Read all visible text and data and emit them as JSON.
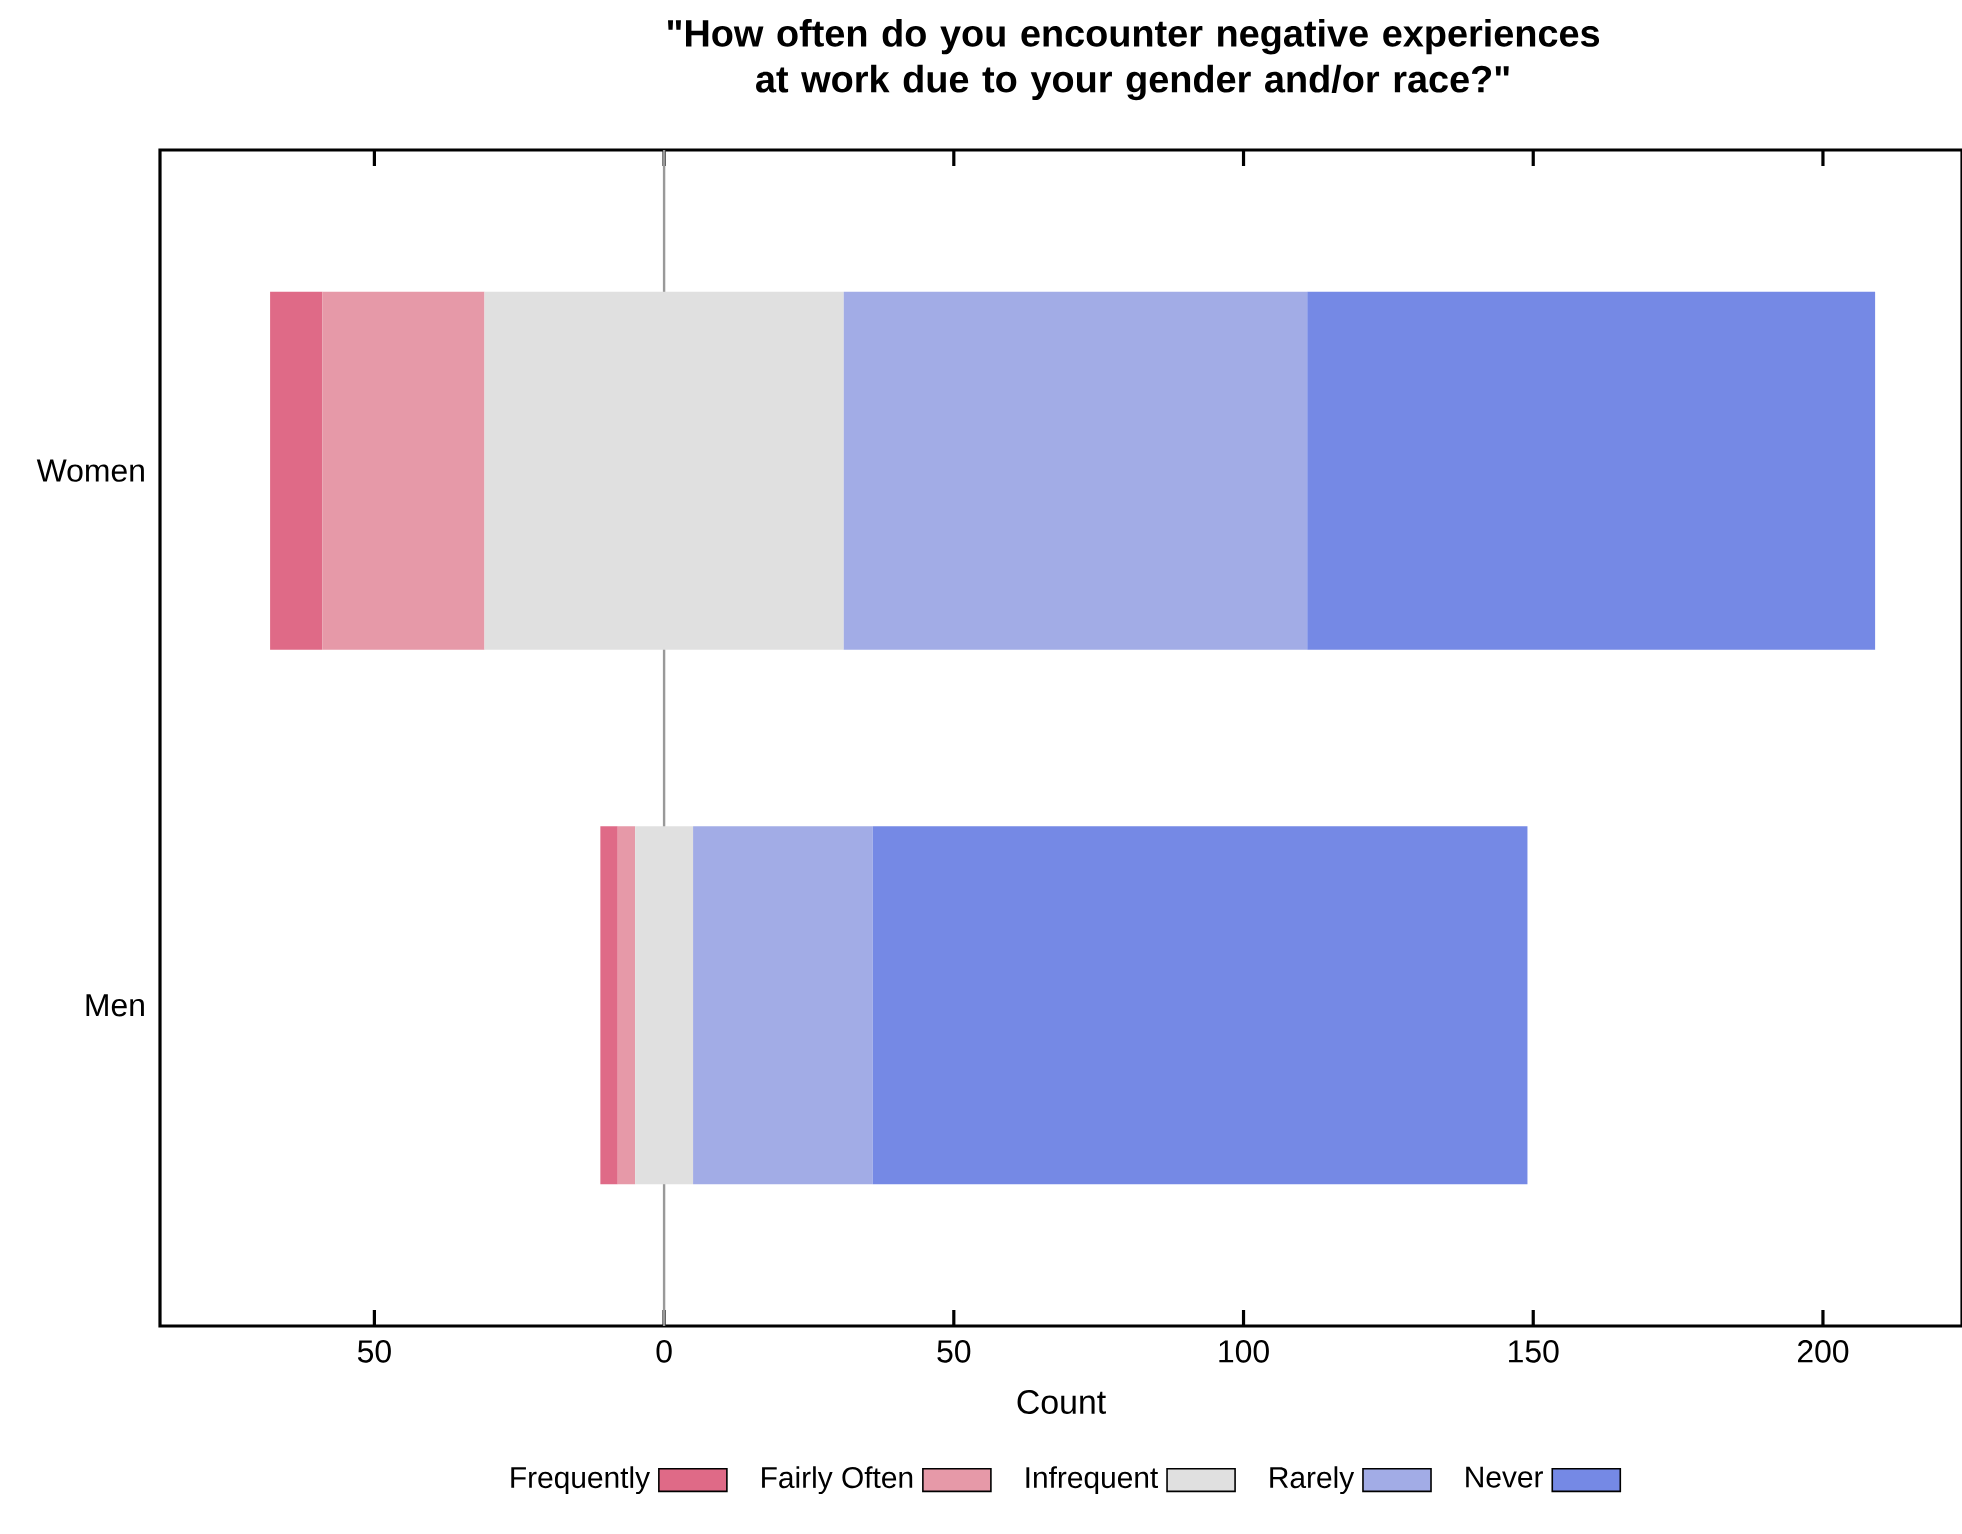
{
  "chart_data": {
    "type": "bar",
    "orientation": "horizontal",
    "title": "\"How often do you encounter negative experiences at work due to your gender and/or race?\"",
    "xlabel": "Count",
    "categories": [
      "Women",
      "Men"
    ],
    "series": [
      {
        "name": "Frequently",
        "color": "#df6a87",
        "base": [
          -68,
          -11
        ],
        "values": [
          9,
          3
        ]
      },
      {
        "name": "Fairly Often",
        "color": "#e699a8",
        "base": [
          -59,
          -8
        ],
        "values": [
          28,
          3
        ]
      },
      {
        "name": "Infrequent",
        "color": "#e0e0e0",
        "base": [
          -31,
          -5
        ],
        "values": [
          62,
          10
        ]
      },
      {
        "name": "Rarely",
        "color": "#a2ace6",
        "base": [
          31,
          5
        ],
        "values": [
          80,
          31
        ]
      },
      {
        "name": "Never",
        "color": "#7589e5",
        "base": [
          111,
          36
        ],
        "values": [
          98,
          113
        ]
      }
    ],
    "xlim": [
      -87,
      224
    ],
    "xticks": [
      {
        "value": -50,
        "label": "50"
      },
      0,
      50,
      100,
      150,
      200
    ],
    "ref_lines": [
      {
        "axis": "x",
        "value": 0,
        "color": "#999999"
      }
    ],
    "legend": "bottom",
    "grid": false
  }
}
